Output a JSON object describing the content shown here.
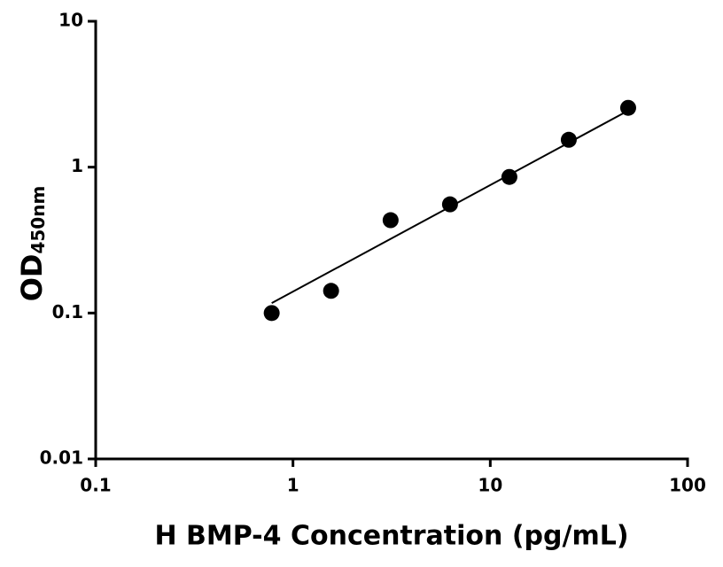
{
  "chart_data": {
    "type": "scatter",
    "x_label": "H BMP-4 Concentration (pg/mL)",
    "y_label": {
      "main": "OD",
      "sub": "450nm"
    },
    "log_x": true,
    "log_y": true,
    "xlim": [
      0.1,
      100
    ],
    "ylim": [
      0.01,
      10
    ],
    "xticks": [
      0.1,
      1,
      10,
      100
    ],
    "yticks": [
      0.01,
      0.1,
      1,
      10
    ],
    "series": [
      {
        "mode": "markers",
        "color": "#000000",
        "x": [
          0.78,
          1.56,
          3.125,
          6.25,
          12.5,
          25,
          50
        ],
        "values": [
          0.1,
          0.142,
          0.433,
          0.556,
          0.857,
          1.54,
          2.55
        ]
      },
      {
        "mode": "line",
        "color": "#000000",
        "x": [
          0.78,
          50
        ],
        "values": [
          0.117,
          2.44
        ]
      }
    ]
  }
}
